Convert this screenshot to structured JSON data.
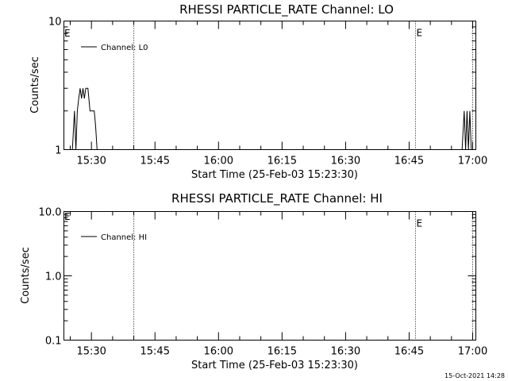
{
  "footer": {
    "timestamp": "15-Oct-2021 14:28"
  },
  "chart_data": [
    {
      "type": "line",
      "title": "RHESSI PARTICLE_RATE Channel: LO",
      "xlabel": "Start Time (25-Feb-03 15:23:30)",
      "ylabel": "Counts/sec",
      "yscale": "log",
      "ylim": [
        1,
        10
      ],
      "yticks": [
        {
          "v": 1,
          "label": "1"
        },
        {
          "v": 10,
          "label": "10"
        }
      ],
      "xlim": [
        "15:23:30",
        "17:00:45"
      ],
      "xticks": [
        "15:30",
        "15:45",
        "16:00",
        "16:15",
        "16:30",
        "16:45",
        "17:00"
      ],
      "event_lines": [
        {
          "t": "15:40:00",
          "label": ""
        },
        {
          "t": "16:46:30",
          "label": "E"
        },
        {
          "t": "17:00:00",
          "label": ""
        }
      ],
      "start_label": "E",
      "legend": "top-left",
      "series": [
        {
          "name": "Channel: L0",
          "points": [
            [
              "15:25:30",
              1
            ],
            [
              "15:26:00",
              2
            ],
            [
              "15:26:20",
              1
            ],
            [
              "15:26:40",
              2
            ],
            [
              "15:27:00",
              2.5
            ],
            [
              "15:27:20",
              3
            ],
            [
              "15:27:40",
              2.5
            ],
            [
              "15:28:00",
              3
            ],
            [
              "15:28:20",
              2.5
            ],
            [
              "15:28:40",
              3
            ],
            [
              "15:29:10",
              3
            ],
            [
              "15:29:40",
              2
            ],
            [
              "15:30:40",
              2
            ],
            [
              "15:31:00",
              1.5
            ],
            [
              "15:31:20",
              1
            ]
          ]
        },
        {
          "name": "",
          "points": [
            [
              "16:57:30",
              1
            ],
            [
              "16:58:00",
              2
            ],
            [
              "16:58:20",
              1
            ],
            [
              "16:58:40",
              2
            ],
            [
              "16:59:00",
              1
            ],
            [
              "16:59:20",
              2
            ],
            [
              "16:59:40",
              1
            ]
          ]
        }
      ]
    },
    {
      "type": "line",
      "title": "RHESSI PARTICLE_RATE Channel: HI",
      "xlabel": "Start Time (25-Feb-03 15:23:30)",
      "ylabel": "Counts/sec",
      "yscale": "log",
      "ylim": [
        0.1,
        10
      ],
      "yticks": [
        {
          "v": 0.1,
          "label": "0.1"
        },
        {
          "v": 1,
          "label": "1.0"
        },
        {
          "v": 10,
          "label": "10.0"
        }
      ],
      "xlim": [
        "15:23:30",
        "17:00:45"
      ],
      "xticks": [
        "15:30",
        "15:45",
        "16:00",
        "16:15",
        "16:30",
        "16:45",
        "17:00"
      ],
      "event_lines": [
        {
          "t": "15:40:00",
          "label": ""
        },
        {
          "t": "16:46:30",
          "label": "E"
        },
        {
          "t": "17:00:00",
          "label": ""
        }
      ],
      "start_label": "E",
      "legend": "top-left",
      "series": [
        {
          "name": "Channel: HI",
          "points": []
        }
      ]
    }
  ]
}
